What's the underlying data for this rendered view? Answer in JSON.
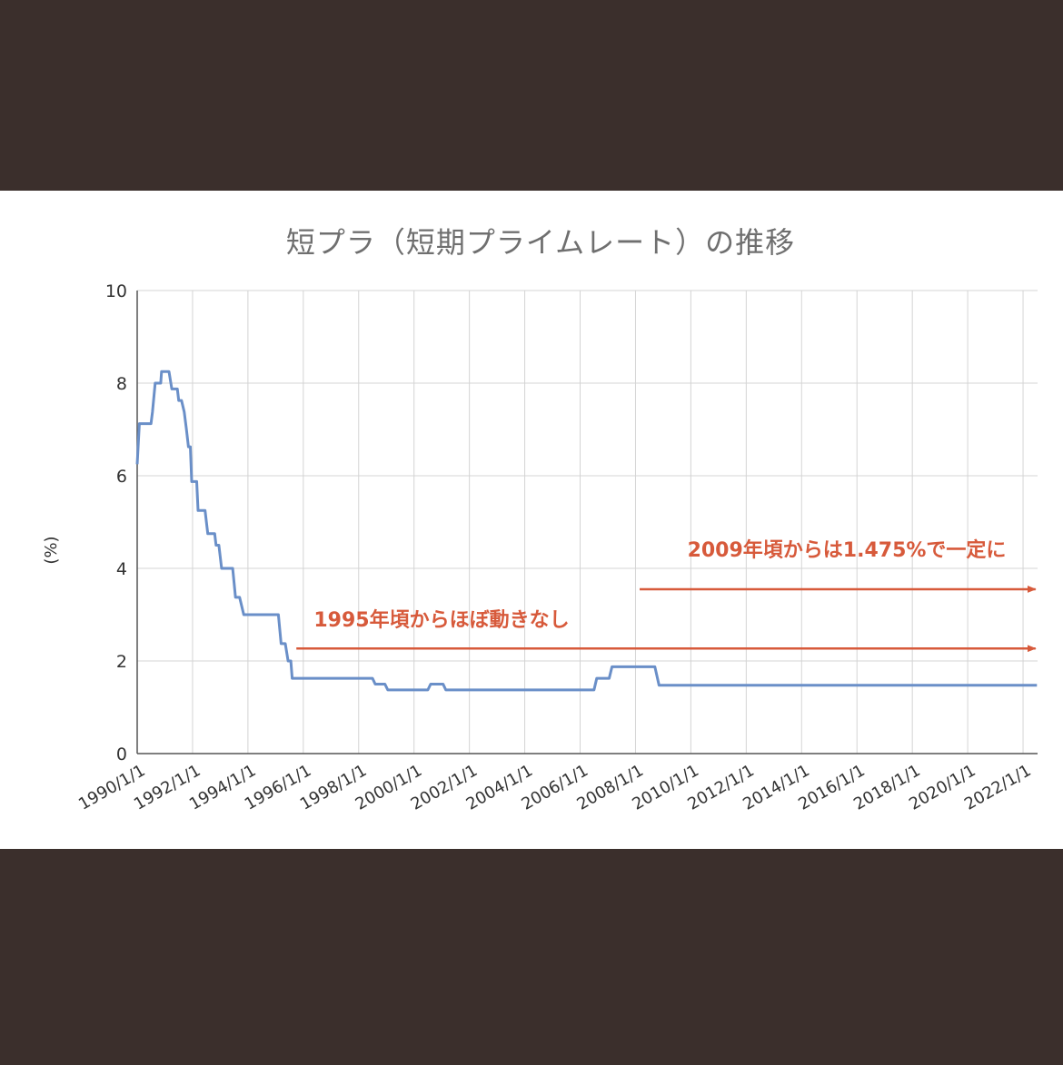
{
  "chart_data": {
    "type": "line",
    "title": "短プラ（短期プライムレート）の推移",
    "xlabel": "",
    "ylabel": "(%)",
    "ylim": [
      0,
      10
    ],
    "yticks": [
      0,
      2,
      4,
      6,
      8,
      10
    ],
    "xlim": [
      1990,
      2022
    ],
    "xticks": [
      "1990/1/1",
      "1992/1/1",
      "1994/1/1",
      "1996/1/1",
      "1998/1/1",
      "2000/1/1",
      "2002/1/1",
      "2004/1/1",
      "2006/1/1",
      "2008/1/1",
      "2010/1/1",
      "2012/1/1",
      "2014/1/1",
      "2016/1/1",
      "2018/1/1",
      "2020/1/1",
      "2022/1/1"
    ],
    "grid": true,
    "series": [
      {
        "line_color": "#6a8fc8",
        "points": [
          [
            1990.0,
            6.25
          ],
          [
            1990.08,
            7.125
          ],
          [
            1990.5,
            7.125
          ],
          [
            1990.55,
            7.375
          ],
          [
            1990.65,
            8.0
          ],
          [
            1990.85,
            8.0
          ],
          [
            1990.88,
            8.25
          ],
          [
            1991.15,
            8.25
          ],
          [
            1991.25,
            7.875
          ],
          [
            1991.45,
            7.875
          ],
          [
            1991.5,
            7.625
          ],
          [
            1991.6,
            7.625
          ],
          [
            1991.7,
            7.375
          ],
          [
            1991.78,
            7.0
          ],
          [
            1991.85,
            6.625
          ],
          [
            1991.92,
            6.625
          ],
          [
            1991.97,
            5.875
          ],
          [
            1992.15,
            5.875
          ],
          [
            1992.2,
            5.25
          ],
          [
            1992.45,
            5.25
          ],
          [
            1992.55,
            4.75
          ],
          [
            1992.8,
            4.75
          ],
          [
            1992.85,
            4.5
          ],
          [
            1992.95,
            4.5
          ],
          [
            1993.05,
            4.0
          ],
          [
            1993.45,
            4.0
          ],
          [
            1993.55,
            3.375
          ],
          [
            1993.7,
            3.375
          ],
          [
            1993.85,
            3.0
          ],
          [
            1995.1,
            3.0
          ],
          [
            1995.2,
            2.375
          ],
          [
            1995.35,
            2.375
          ],
          [
            1995.45,
            2.0
          ],
          [
            1995.55,
            2.0
          ],
          [
            1995.6,
            1.625
          ],
          [
            1998.5,
            1.625
          ],
          [
            1998.6,
            1.5
          ],
          [
            1998.95,
            1.5
          ],
          [
            1999.05,
            1.375
          ],
          [
            2000.5,
            1.375
          ],
          [
            2000.6,
            1.5
          ],
          [
            2001.05,
            1.5
          ],
          [
            2001.15,
            1.375
          ],
          [
            2006.5,
            1.375
          ],
          [
            2006.6,
            1.625
          ],
          [
            2007.05,
            1.625
          ],
          [
            2007.15,
            1.875
          ],
          [
            2008.7,
            1.875
          ],
          [
            2008.85,
            1.475
          ],
          [
            2022.5,
            1.475
          ]
        ]
      }
    ],
    "annotations": [
      {
        "text": "2009年頃からは1.475%で一定に",
        "color": "#d75a3b",
        "arrow_from": [
          2008.15,
          3.55
        ],
        "arrow_to": [
          2022.45,
          3.55
        ]
      },
      {
        "text": "1995年頃からほぼ動きなし",
        "color": "#d75a3b",
        "arrow_from": [
          1995.75,
          2.27
        ],
        "arrow_to": [
          2022.45,
          2.27
        ]
      }
    ]
  }
}
